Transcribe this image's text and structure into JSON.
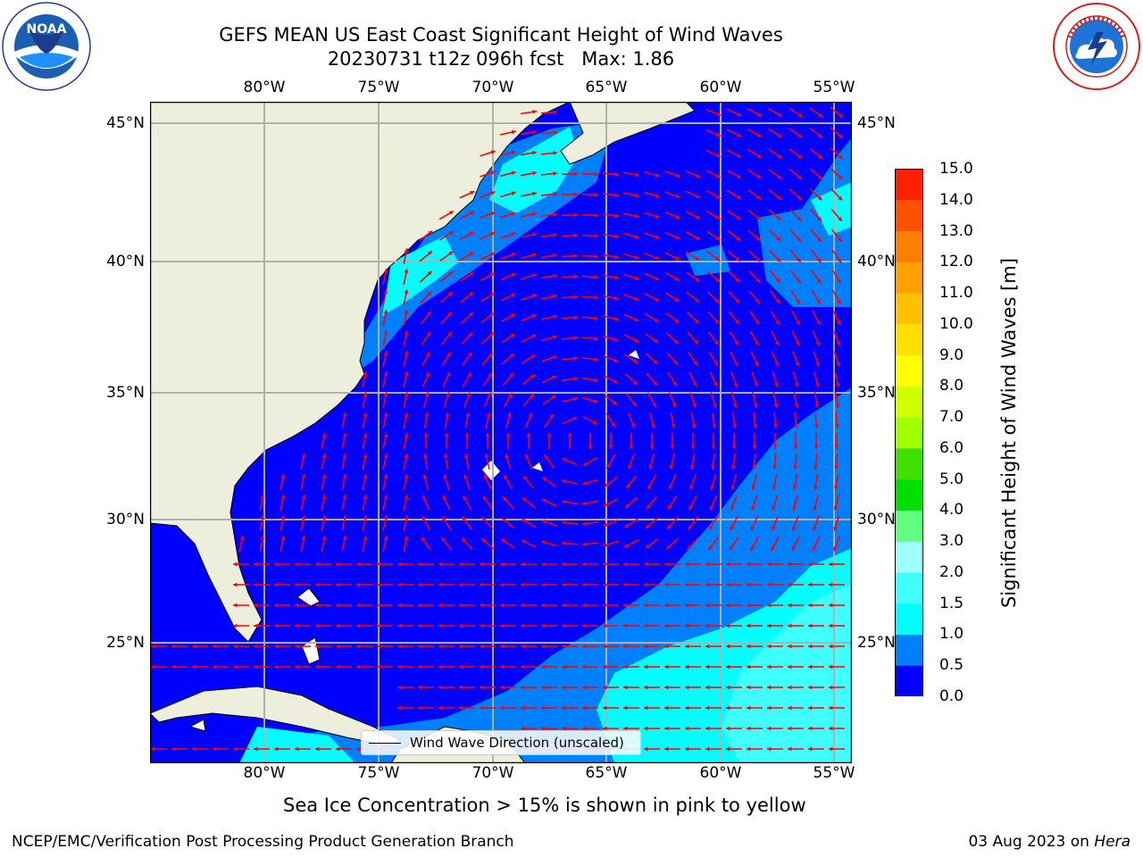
{
  "header": {
    "title_line1": "GEFS MEAN US East Coast Significant Height of Wind Waves",
    "title_line2": "20230731 t12z 096h fcst   Max: 1.86"
  },
  "logos": {
    "noaa_text": "NOAA",
    "noaa_ring": "NATIONAL OCEANIC AND ATMOSPHERIC ADMINISTRATION · U.S. DEPARTMENT OF COMMERCE",
    "nws_ring": "NATIONAL WEATHER SERVICE"
  },
  "map": {
    "lon_labels": [
      "80°W",
      "75°W",
      "70°W",
      "65°W",
      "60°W",
      "55°W"
    ],
    "lat_labels": [
      "45°N",
      "40°N",
      "35°N",
      "30°N",
      "25°N"
    ],
    "land_color": "#eeeedd",
    "ocean_color": "#0000ff",
    "arrow_color": "#ff0000",
    "grid_color": "#b0b0b0",
    "legend_label": "Wind Wave Direction (unscaled)"
  },
  "colorbar": {
    "label": "Significant Height of Wind Waves [m]",
    "ticks": [
      "0.0",
      "0.5",
      "1.0",
      "1.5",
      "2.0",
      "3.0",
      "4.0",
      "5.0",
      "6.0",
      "7.0",
      "8.0",
      "9.0",
      "10.0",
      "11.0",
      "12.0",
      "13.0",
      "14.0",
      "15.0"
    ],
    "colors": [
      "#0000ff",
      "#0080ff",
      "#00ffff",
      "#40ffff",
      "#a0ffff",
      "#60ff80",
      "#00e000",
      "#40e000",
      "#a0ff00",
      "#d0ff00",
      "#ffff00",
      "#ffe000",
      "#ffc000",
      "#ffa000",
      "#ff8000",
      "#ff5000",
      "#ff2000",
      "#ff0000"
    ]
  },
  "footnote": "Sea Ice Concentration > 15% is shown in pink to yellow",
  "footer": {
    "left": "NCEP/EMC/Verification Post Processing Product Generation Branch",
    "date": "03 Aug 2023 on ",
    "machine": "Hera"
  }
}
